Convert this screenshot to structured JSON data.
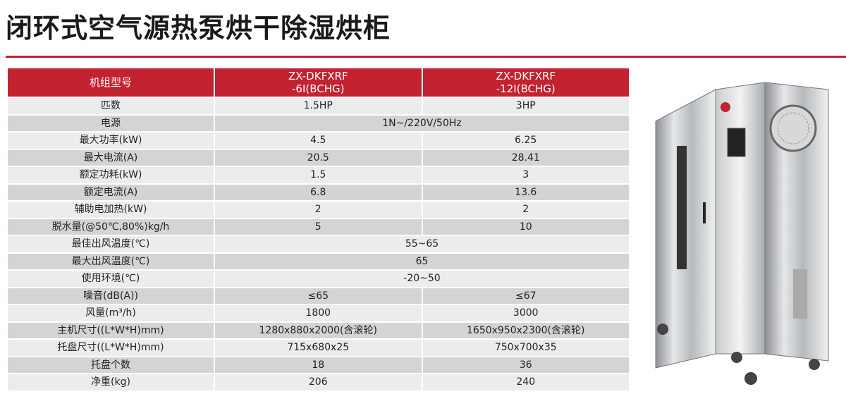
{
  "title": "闭环式空气源热泵烘干除湿烘柜",
  "table": {
    "header": {
      "label": "机组型号",
      "models": [
        {
          "line1": "ZX-DKFXRF",
          "line2": "-6Ⅰ(BCHG)"
        },
        {
          "line1": "ZX-DKFXRF",
          "line2": "-12Ⅰ(BCHG)"
        }
      ]
    },
    "rows": [
      {
        "label": "匹数",
        "values": [
          "1.5HP",
          "3HP"
        ]
      },
      {
        "label": "电源",
        "merged": "1N~/220V/50Hz"
      },
      {
        "label": "最大功率(kW)",
        "values": [
          "4.5",
          "6.25"
        ]
      },
      {
        "label": "最大电流(A)",
        "values": [
          "20.5",
          "28.41"
        ]
      },
      {
        "label": "额定功耗(kW)",
        "values": [
          "1.5",
          "3"
        ]
      },
      {
        "label": "额定电流(A)",
        "values": [
          "6.8",
          "13.6"
        ]
      },
      {
        "label": "辅助电加热(kW)",
        "values": [
          "2",
          "2"
        ]
      },
      {
        "label": "脱水量(@50℃,80%)kg/h",
        "values": [
          "5",
          "10"
        ]
      },
      {
        "label": "最佳出风温度(℃)",
        "merged": "55~65"
      },
      {
        "label": "最大出风温度(℃)",
        "merged": "65"
      },
      {
        "label": "使用环境(℃)",
        "merged": "-20~50"
      },
      {
        "label": "噪音(dB(A))",
        "values": [
          "≤65",
          "≤67"
        ]
      },
      {
        "label": "风量(m³/h)",
        "values": [
          "1800",
          "3000"
        ]
      },
      {
        "label": "主机尺寸((L*W*H)mm)",
        "values": [
          "1280x880x2000(含滚轮)",
          "1650x950x2300(含滚轮)"
        ]
      },
      {
        "label": "托盘尺寸((L*W*H)mm)",
        "values": [
          "715x680x25",
          "750x700x35"
        ]
      },
      {
        "label": "托盘个数",
        "values": [
          "18",
          "36"
        ]
      },
      {
        "label": "净重(kg)",
        "values": [
          "206",
          "240"
        ]
      }
    ]
  },
  "colors": {
    "accent": "#c32230",
    "row_light": "#ececec",
    "row_dark": "#d4d4d4"
  },
  "image": {
    "subject": "stainless-steel-drying-cabinet"
  }
}
